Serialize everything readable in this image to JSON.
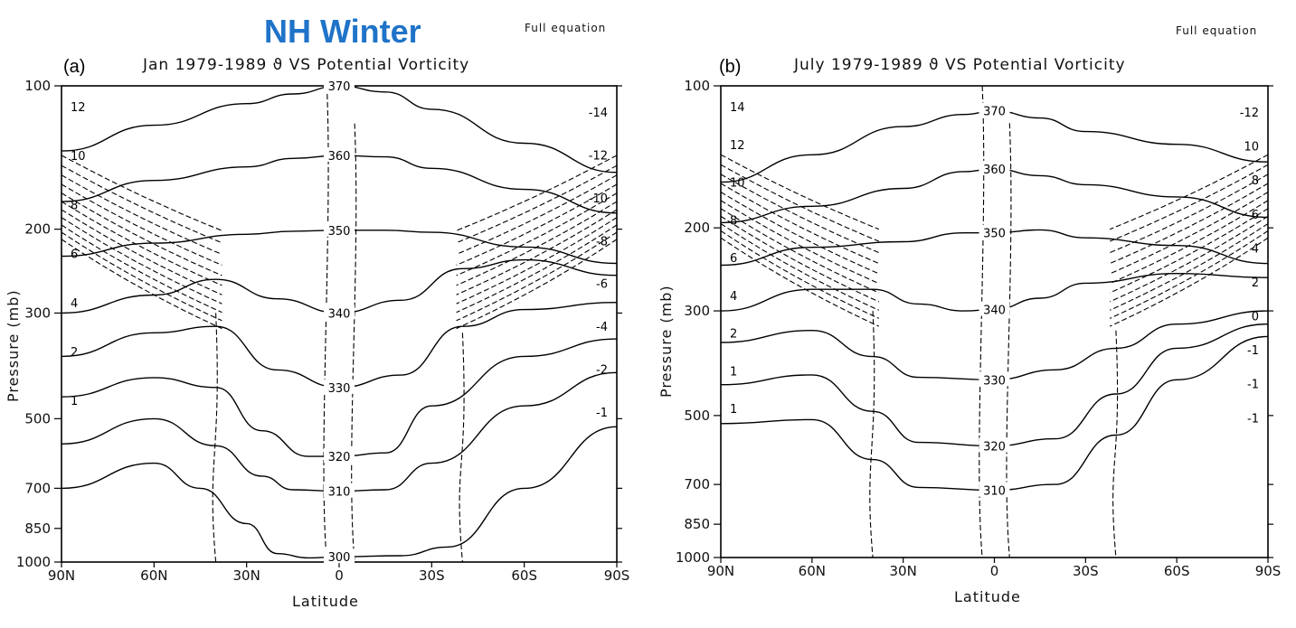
{
  "figure": {
    "headline": "NH Winter",
    "headline_color": "#1f73c8"
  },
  "chart_data": [
    {
      "type": "contour",
      "panel_label": "(a)",
      "title": "Jan 1979-1989 ϑ VS Potential Vorticity",
      "note": "Full equation",
      "xlabel": "Latitude",
      "ylabel": "Pressure (mb)",
      "x_ticks": [
        "90N",
        "60N",
        "30N",
        "0",
        "30S",
        "60S",
        "90S"
      ],
      "x_values": [
        90,
        60,
        30,
        0,
        -30,
        -60,
        -90
      ],
      "y_ticks": [
        100,
        200,
        300,
        500,
        700,
        850,
        1000
      ],
      "y_scale": "log",
      "xlim": [
        90,
        -90
      ],
      "ylim": [
        1000,
        100
      ],
      "theta_levels": [
        300,
        310,
        320,
        330,
        340,
        350,
        360,
        370
      ],
      "theta_series": [
        {
          "label": "370",
          "points": [
            [
              90,
              137
            ],
            [
              60,
              121
            ],
            [
              30,
              109
            ],
            [
              15,
              104
            ],
            [
              0,
              100
            ],
            [
              -15,
              103
            ],
            [
              -30,
              112
            ],
            [
              -60,
              132
            ],
            [
              -90,
              152
            ]
          ]
        },
        {
          "label": "360",
          "points": [
            [
              90,
              175
            ],
            [
              60,
              158
            ],
            [
              30,
              148
            ],
            [
              15,
              142
            ],
            [
              0,
              140
            ],
            [
              -15,
              141
            ],
            [
              -30,
              149
            ],
            [
              -60,
              165
            ],
            [
              -90,
              185
            ]
          ]
        },
        {
          "label": "350",
          "points": [
            [
              90,
              228
            ],
            [
              60,
              214
            ],
            [
              30,
              205
            ],
            [
              15,
              202
            ],
            [
              0,
              201
            ],
            [
              -15,
              201
            ],
            [
              -30,
              203
            ],
            [
              -60,
              218
            ],
            [
              -90,
              236
            ]
          ]
        },
        {
          "label": "340",
          "points": [
            [
              90,
              300
            ],
            [
              60,
              275
            ],
            [
              40,
              255
            ],
            [
              20,
              280
            ],
            [
              0,
              300
            ],
            [
              -20,
              282
            ],
            [
              -40,
              242
            ],
            [
              -60,
              232
            ],
            [
              -90,
              250
            ]
          ]
        },
        {
          "label": "330",
          "points": [
            [
              90,
              370
            ],
            [
              60,
              330
            ],
            [
              40,
              320
            ],
            [
              20,
              395
            ],
            [
              0,
              430
            ],
            [
              -20,
              405
            ],
            [
              -40,
              320
            ],
            [
              -60,
              295
            ],
            [
              -90,
              285
            ]
          ]
        },
        {
          "label": "320",
          "points": [
            [
              90,
              450
            ],
            [
              60,
              410
            ],
            [
              40,
              430
            ],
            [
              25,
              530
            ],
            [
              10,
              600
            ],
            [
              0,
              600
            ],
            [
              -15,
              590
            ],
            [
              -30,
              470
            ],
            [
              -60,
              370
            ],
            [
              -90,
              340
            ]
          ]
        },
        {
          "label": "310",
          "points": [
            [
              90,
              565
            ],
            [
              60,
              500
            ],
            [
              40,
              570
            ],
            [
              25,
              660
            ],
            [
              15,
              705
            ],
            [
              0,
              710
            ],
            [
              -15,
              705
            ],
            [
              -30,
              620
            ],
            [
              -60,
              470
            ],
            [
              -90,
              400
            ]
          ]
        },
        {
          "label": "300",
          "points": [
            [
              90,
              700
            ],
            [
              60,
              620
            ],
            [
              45,
              700
            ],
            [
              30,
              830
            ],
            [
              20,
              960
            ],
            [
              10,
              980
            ],
            [
              0,
              975
            ],
            [
              -20,
              970
            ],
            [
              -35,
              930
            ],
            [
              -60,
              700
            ],
            [
              -90,
              520
            ]
          ]
        }
      ],
      "pv_labels_left": [
        "12",
        "10",
        "8",
        "6",
        "4",
        "2",
        "1"
      ],
      "pv_labels_right": [
        "-14",
        "-12",
        "-10",
        "-8",
        "-6",
        "-4",
        "-2",
        "-1"
      ]
    },
    {
      "type": "contour",
      "panel_label": "(b)",
      "title": "July 1979-1989 ϑ VS Potential Vorticity",
      "note": "Full equation",
      "xlabel": "Latitude",
      "ylabel": "Pressure (mb)",
      "x_ticks": [
        "90N",
        "60N",
        "30N",
        "0",
        "30S",
        "60S",
        "90S"
      ],
      "x_values": [
        90,
        60,
        30,
        0,
        -30,
        -60,
        -90
      ],
      "y_ticks": [
        100,
        200,
        300,
        500,
        700,
        850,
        1000
      ],
      "y_scale": "log",
      "xlim": [
        90,
        -90
      ],
      "ylim": [
        1000,
        100
      ],
      "theta_levels": [
        310,
        320,
        330,
        340,
        350,
        360,
        370
      ],
      "theta_series": [
        {
          "label": "370",
          "points": [
            [
              90,
              160
            ],
            [
              60,
              140
            ],
            [
              30,
              122
            ],
            [
              10,
              115
            ],
            [
              0,
              113
            ],
            [
              -15,
              117
            ],
            [
              -30,
              125
            ],
            [
              -60,
              133
            ],
            [
              -90,
              145
            ]
          ]
        },
        {
          "label": "360",
          "points": [
            [
              90,
              195
            ],
            [
              60,
              180
            ],
            [
              30,
              165
            ],
            [
              10,
              152
            ],
            [
              0,
              150
            ],
            [
              -15,
              155
            ],
            [
              -30,
              162
            ],
            [
              -60,
              172
            ],
            [
              -90,
              190
            ]
          ]
        },
        {
          "label": "350",
          "points": [
            [
              90,
              240
            ],
            [
              60,
              220
            ],
            [
              30,
              214
            ],
            [
              10,
              205
            ],
            [
              0,
              205
            ],
            [
              -15,
              202
            ],
            [
              -30,
              210
            ],
            [
              -60,
              218
            ],
            [
              -90,
              238
            ]
          ]
        },
        {
          "label": "340",
          "points": [
            [
              90,
              300
            ],
            [
              60,
              270
            ],
            [
              40,
              270
            ],
            [
              25,
              290
            ],
            [
              10,
              300
            ],
            [
              0,
              298
            ],
            [
              -15,
              282
            ],
            [
              -30,
              262
            ],
            [
              -60,
              250
            ],
            [
              -90,
              255
            ]
          ]
        },
        {
          "label": "330",
          "points": [
            [
              90,
              350
            ],
            [
              60,
              330
            ],
            [
              40,
              375
            ],
            [
              25,
              415
            ],
            [
              0,
              420
            ],
            [
              -20,
              400
            ],
            [
              -40,
              360
            ],
            [
              -60,
              320
            ],
            [
              -90,
              300
            ]
          ]
        },
        {
          "label": "320",
          "points": [
            [
              90,
              430
            ],
            [
              60,
              410
            ],
            [
              40,
              490
            ],
            [
              25,
              570
            ],
            [
              0,
              580
            ],
            [
              -20,
              560
            ],
            [
              -40,
              450
            ],
            [
              -60,
              360
            ],
            [
              -90,
              320
            ]
          ]
        },
        {
          "label": "310",
          "points": [
            [
              90,
              520
            ],
            [
              60,
              510
            ],
            [
              40,
              620
            ],
            [
              25,
              710
            ],
            [
              0,
              720
            ],
            [
              -20,
              700
            ],
            [
              -40,
              550
            ],
            [
              -60,
              420
            ],
            [
              -90,
              340
            ]
          ]
        }
      ],
      "pv_labels_left": [
        "14",
        "12",
        "10",
        "8",
        "6",
        "4",
        "2",
        "1",
        "1"
      ],
      "pv_labels_right": [
        "-12",
        "10",
        "8",
        "6",
        "4",
        "2",
        "0",
        "-1",
        "-1",
        "-1"
      ]
    }
  ]
}
